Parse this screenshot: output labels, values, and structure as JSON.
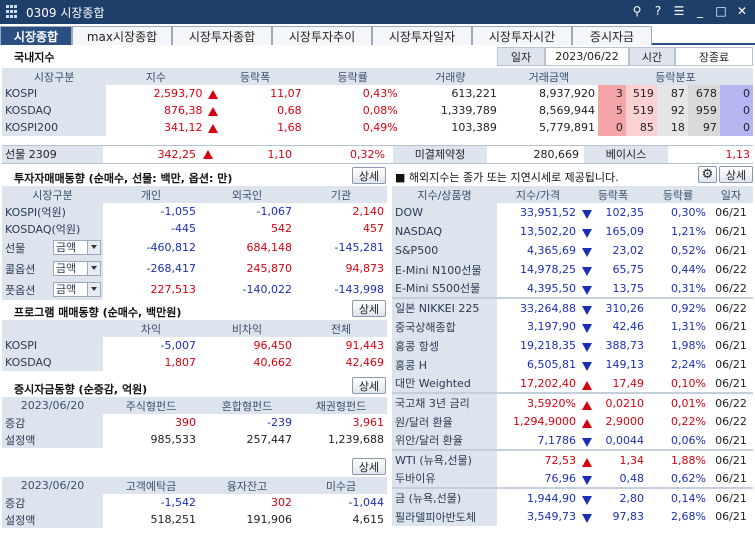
{
  "window": {
    "title": "0309 시장종합"
  },
  "tabs": [
    "시장종합",
    "max시장종합",
    "시장투자종합",
    "시장투자추이",
    "시장투자일자",
    "시장투자시간",
    "증시자금"
  ],
  "domestic": {
    "title": "국내지수",
    "date_label": "일자",
    "date_value": "2023/06/22",
    "time_label": "시간",
    "time_value": "장종료",
    "headers": [
      "시장구분",
      "지수",
      "등락폭",
      "등락률",
      "거래량",
      "거래금액",
      "등락분포"
    ],
    "rows": [
      {
        "name": "KOSPI",
        "index": "2,593,70",
        "change": "11,07",
        "rate": "0,43%",
        "volume": "613,221",
        "amount": "8,937,920",
        "dist": [
          "3",
          "519",
          "87",
          "678",
          "0"
        ]
      },
      {
        "name": "KOSDAQ",
        "index": "876,38",
        "change": "0,68",
        "rate": "0,08%",
        "volume": "1,339,789",
        "amount": "8,569,944",
        "dist": [
          "5",
          "519",
          "92",
          "959",
          "0"
        ]
      },
      {
        "name": "KOSPI200",
        "index": "341,12",
        "change": "1,68",
        "rate": "0,49%",
        "volume": "103,389",
        "amount": "5,779,891",
        "dist": [
          "0",
          "85",
          "18",
          "97",
          "0"
        ]
      }
    ],
    "futures": {
      "name": "선물 2309",
      "index": "342,25",
      "change": "1,10",
      "rate": "0,32%",
      "oi_label": "미결제약정",
      "oi_value": "280,669",
      "basis_label": "베이시스",
      "basis_value": "1,13"
    }
  },
  "investor": {
    "title": "투자자매매동향 (순매수, 선물: 백만, 옵션: 만)",
    "detail": "상세",
    "headers": [
      "시장구분",
      "개인",
      "외국인",
      "기관"
    ],
    "rows": [
      {
        "name": "KOSPI(억원)",
        "v1": "-1,055",
        "v2": "-1,067",
        "v3": "2,140"
      },
      {
        "name": "KOSDAQ(억원)",
        "v1": "-445",
        "v2": "542",
        "v3": "457"
      }
    ],
    "select_rows": [
      {
        "name": "선물",
        "select": "금액",
        "v1": "-460,812",
        "v2": "684,148",
        "v3": "-145,281"
      },
      {
        "name": "콜옵션",
        "select": "금액",
        "v1": "-268,417",
        "v2": "245,870",
        "v3": "94,873"
      },
      {
        "name": "풋옵션",
        "select": "금액",
        "v1": "227,513",
        "v2": "-140,022",
        "v3": "-143,998"
      }
    ]
  },
  "program": {
    "title": "프로그램 매매동향 (순매수, 백만원)",
    "detail": "상세",
    "headers": [
      "차익",
      "비차익",
      "전체"
    ],
    "rows": [
      {
        "name": "KOSPI",
        "v1": "-5,007",
        "v2": "96,450",
        "v3": "91,443"
      },
      {
        "name": "KOSDAQ",
        "v1": "1,807",
        "v2": "40,662",
        "v3": "42,469"
      }
    ]
  },
  "funds": {
    "title": "증시자금동향 (순증감, 억원)",
    "detail": "상세",
    "headers": [
      "2023/06/20",
      "주식형펀드",
      "혼합형펀드",
      "채권형펀드"
    ],
    "rows": [
      {
        "name": "증감",
        "v1": "390",
        "v2": "-239",
        "v3": "3,961"
      },
      {
        "name": "설정액",
        "v1": "985,533",
        "v2": "257,447",
        "v3": "1,239,688"
      }
    ],
    "detail2": "상세",
    "headers2": [
      "2023/06/20",
      "고객예탁금",
      "융자잔고",
      "미수금"
    ],
    "rows2": [
      {
        "name": "증감",
        "v1": "-1,542",
        "v2": "302",
        "v3": "-1,044"
      },
      {
        "name": "설정액",
        "v1": "518,251",
        "v2": "191,906",
        "v3": "4,615"
      }
    ]
  },
  "overseas": {
    "title": "■ 해외지수는 종가 또는 지연시세로 제공됩니다.",
    "detail": "상세",
    "headers": [
      "지수/상품명",
      "지수/가격",
      "등락폭",
      "등락률",
      "일자"
    ],
    "groups": [
      [
        {
          "name": "DOW",
          "price": "33,951,52",
          "dir": "down",
          "change": "102,35",
          "rate": "0,30%",
          "date": "06/21"
        },
        {
          "name": "NASDAQ",
          "price": "13,502,20",
          "dir": "down",
          "change": "165,09",
          "rate": "1,21%",
          "date": "06/21"
        },
        {
          "name": "S&P500",
          "price": "4,365,69",
          "dir": "down",
          "change": "23,02",
          "rate": "0,52%",
          "date": "06/21"
        },
        {
          "name": "E-Mini N100선물",
          "price": "14,978,25",
          "dir": "down",
          "change": "65,75",
          "rate": "0,44%",
          "date": "06/22"
        },
        {
          "name": "E-Mini S500선물",
          "price": "4,395,50",
          "dir": "down",
          "change": "13,75",
          "rate": "0,31%",
          "date": "06/22"
        }
      ],
      [
        {
          "name": "일본 NIKKEI 225",
          "price": "33,264,88",
          "dir": "down",
          "change": "310,26",
          "rate": "0,92%",
          "date": "06/22"
        },
        {
          "name": "중국상해종합",
          "price": "3,197,90",
          "dir": "down",
          "change": "42,46",
          "rate": "1,31%",
          "date": "06/21"
        },
        {
          "name": "홍콩 항셍",
          "price": "19,218,35",
          "dir": "down",
          "change": "388,73",
          "rate": "1,98%",
          "date": "06/21"
        },
        {
          "name": "홍콩 H",
          "price": "6,505,81",
          "dir": "down",
          "change": "149,13",
          "rate": "2,24%",
          "date": "06/21"
        },
        {
          "name": "대만 Weighted",
          "price": "17,202,40",
          "dir": "up",
          "change": "17,49",
          "rate": "0,10%",
          "date": "06/21"
        }
      ],
      [
        {
          "name": "국고채 3년 금리",
          "price": "3,5920%",
          "dir": "up",
          "change": "0,0210",
          "rate": "0,01%",
          "date": "06/22"
        },
        {
          "name": "원/달러 환율",
          "price": "1,294,9000",
          "dir": "up",
          "change": "2,9000",
          "rate": "0,22%",
          "date": "06/22"
        },
        {
          "name": "위안/달러 환율",
          "price": "7,1786",
          "dir": "down",
          "change": "0,0044",
          "rate": "0,06%",
          "date": "06/21"
        }
      ],
      [
        {
          "name": "WTI (뉴욕,선물)",
          "price": "72,53",
          "dir": "up",
          "change": "1,34",
          "rate": "1,88%",
          "date": "06/21"
        },
        {
          "name": "두바이유",
          "price": "76,96",
          "dir": "down",
          "change": "0,48",
          "rate": "0,62%",
          "date": "06/21"
        }
      ],
      [
        {
          "name": "금 (뉴욕,선물)",
          "price": "1,944,90",
          "dir": "down",
          "change": "2,80",
          "rate": "0,14%",
          "date": "06/21"
        },
        {
          "name": "필라델피아반도체",
          "price": "3,549,73",
          "dir": "down",
          "change": "97,83",
          "rate": "2,68%",
          "date": "06/21"
        }
      ]
    ]
  },
  "colors": {
    "up": "#d8000f",
    "down": "#1b2fb5",
    "header_bg": "#dde4ee",
    "titlebar": "#1f3f6b",
    "tab_active": "#2b4f82"
  }
}
